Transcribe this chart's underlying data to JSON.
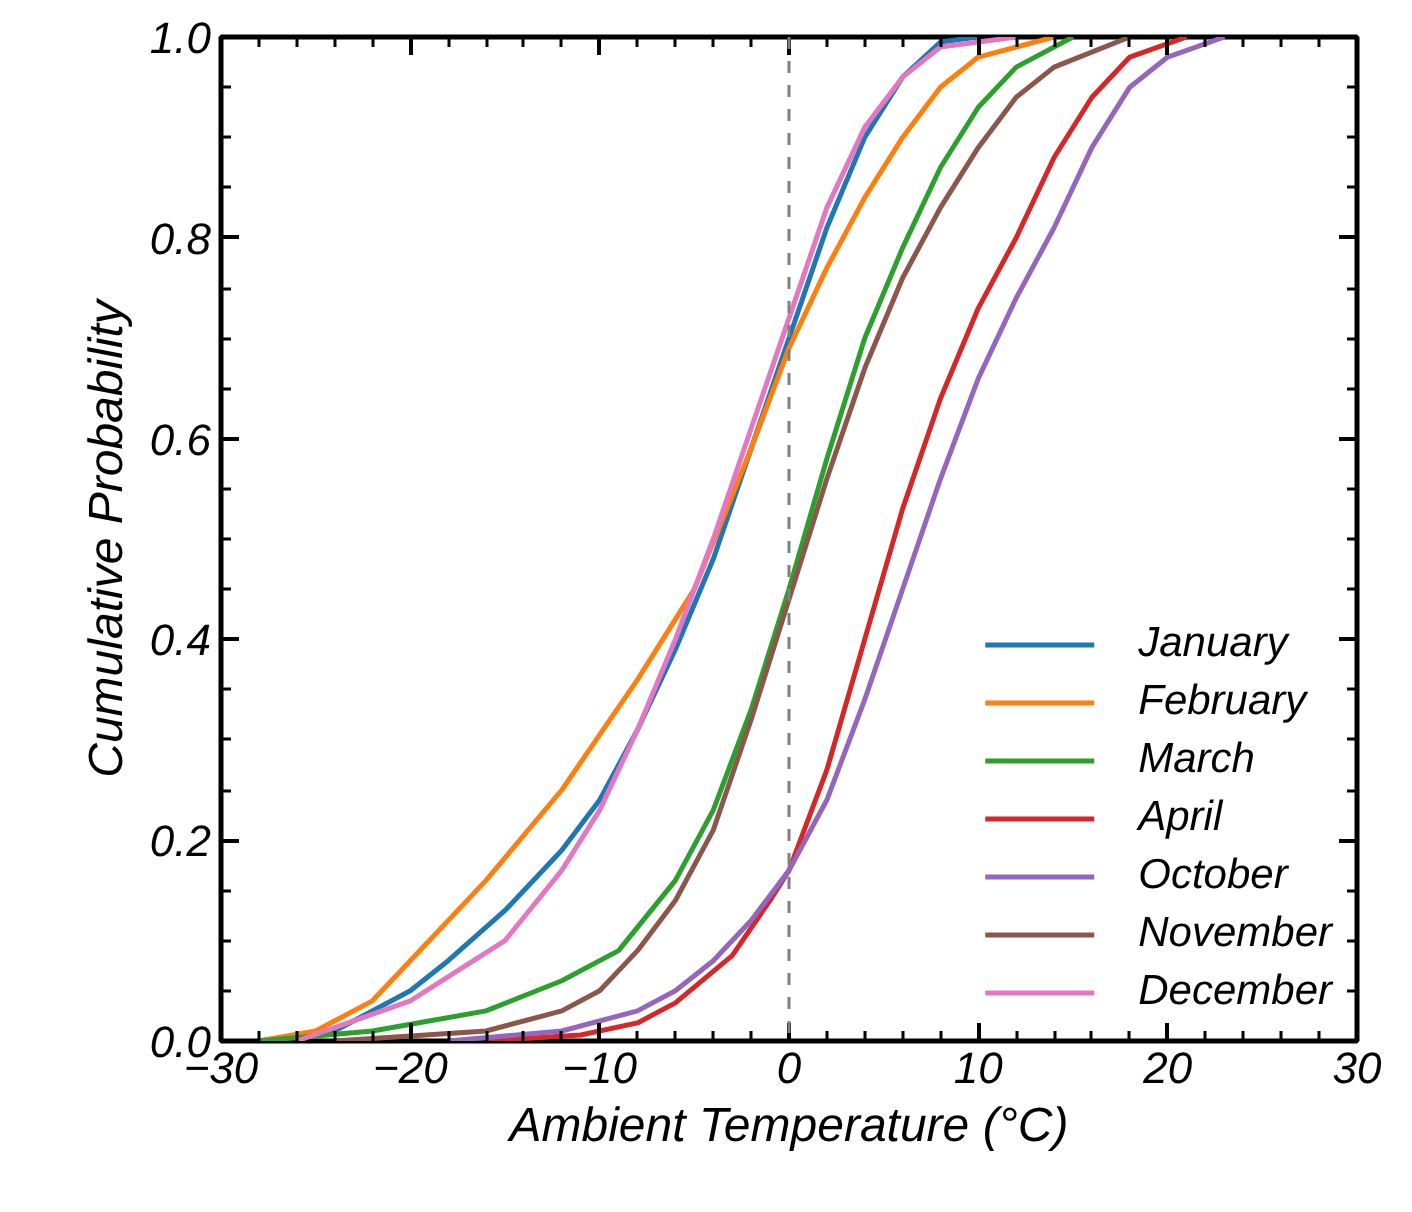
{
  "chart_data": {
    "type": "line",
    "xlabel": "Ambient Temperature (°C)",
    "ylabel": "Cumulative Probability",
    "xlim": [
      -30,
      30
    ],
    "ylim": [
      0,
      1
    ],
    "xticks": [
      {
        "value": -30,
        "label": "−30"
      },
      {
        "value": -20,
        "label": "−20"
      },
      {
        "value": -10,
        "label": "−10"
      },
      0,
      10,
      20,
      30
    ],
    "yticks": [
      {
        "value": 0,
        "label": "0.0"
      },
      0.2,
      0.4,
      0.6,
      0.8,
      {
        "value": 1,
        "label": "1.0"
      }
    ],
    "grid": false,
    "legend": "bottom right",
    "marker": "none",
    "line_style": "solid",
    "ref_lines": [
      {
        "axis": "x",
        "value": 0,
        "label": null,
        "color": "#808080",
        "line_style": "dashed"
      }
    ],
    "series": [
      {
        "name": "January",
        "color": "#1f77b4",
        "x": [
          -28,
          -24,
          -20,
          -18,
          -15,
          -12,
          -10,
          -8,
          -6,
          -4,
          -2,
          0,
          2,
          4,
          6,
          8,
          10
        ],
        "values": [
          0,
          0.01,
          0.05,
          0.08,
          0.13,
          0.19,
          0.24,
          0.31,
          0.39,
          0.48,
          0.59,
          0.7,
          0.81,
          0.9,
          0.96,
          0.995,
          1.0
        ]
      },
      {
        "name": "February",
        "color": "#ff7f0e",
        "x": [
          -28,
          -25,
          -22,
          -20,
          -16,
          -12,
          -8,
          -5,
          -2,
          0,
          2,
          4,
          6,
          8,
          10,
          14
        ],
        "values": [
          0,
          0.01,
          0.04,
          0.08,
          0.16,
          0.25,
          0.36,
          0.45,
          0.59,
          0.69,
          0.77,
          0.84,
          0.9,
          0.95,
          0.98,
          1.0
        ]
      },
      {
        "name": "March",
        "color": "#2ca02c",
        "x": [
          -28,
          -22,
          -16,
          -12,
          -9,
          -6,
          -4,
          -2,
          0,
          2,
          4,
          6,
          8,
          10,
          12,
          15
        ],
        "values": [
          0,
          0.01,
          0.03,
          0.06,
          0.09,
          0.16,
          0.23,
          0.33,
          0.45,
          0.58,
          0.7,
          0.79,
          0.87,
          0.93,
          0.97,
          1.0
        ]
      },
      {
        "name": "April",
        "color": "#d62728",
        "x": [
          -16,
          -11,
          -8,
          -6,
          -3,
          -1,
          0,
          2,
          4,
          6,
          8,
          10,
          12,
          14,
          16,
          18,
          21
        ],
        "values": [
          0,
          0.006,
          0.018,
          0.038,
          0.085,
          0.14,
          0.17,
          0.27,
          0.4,
          0.53,
          0.64,
          0.73,
          0.8,
          0.88,
          0.94,
          0.98,
          1.0
        ]
      },
      {
        "name": "October",
        "color": "#9467bd",
        "x": [
          -18,
          -12,
          -8,
          -6,
          -4,
          -2,
          0,
          2,
          4,
          6,
          8,
          10,
          12,
          14,
          16,
          18,
          20,
          23
        ],
        "values": [
          0,
          0.01,
          0.03,
          0.05,
          0.08,
          0.12,
          0.17,
          0.24,
          0.34,
          0.45,
          0.56,
          0.66,
          0.74,
          0.81,
          0.89,
          0.95,
          0.98,
          1.0
        ]
      },
      {
        "name": "November",
        "color": "#8c564b",
        "x": [
          -24,
          -16,
          -12,
          -10,
          -8,
          -6,
          -4,
          -2,
          0,
          2,
          4,
          6,
          8,
          10,
          12,
          14,
          18
        ],
        "values": [
          0,
          0.01,
          0.03,
          0.05,
          0.09,
          0.14,
          0.21,
          0.32,
          0.44,
          0.56,
          0.67,
          0.76,
          0.83,
          0.89,
          0.94,
          0.97,
          1.0
        ]
      },
      {
        "name": "December",
        "color": "#e377c2",
        "x": [
          -26,
          -20,
          -15,
          -12,
          -10,
          -8,
          -6,
          -4,
          -2,
          0,
          2,
          4,
          6,
          8,
          12
        ],
        "values": [
          0,
          0.04,
          0.1,
          0.17,
          0.23,
          0.31,
          0.4,
          0.5,
          0.61,
          0.72,
          0.83,
          0.91,
          0.96,
          0.99,
          1.0
        ]
      }
    ]
  }
}
